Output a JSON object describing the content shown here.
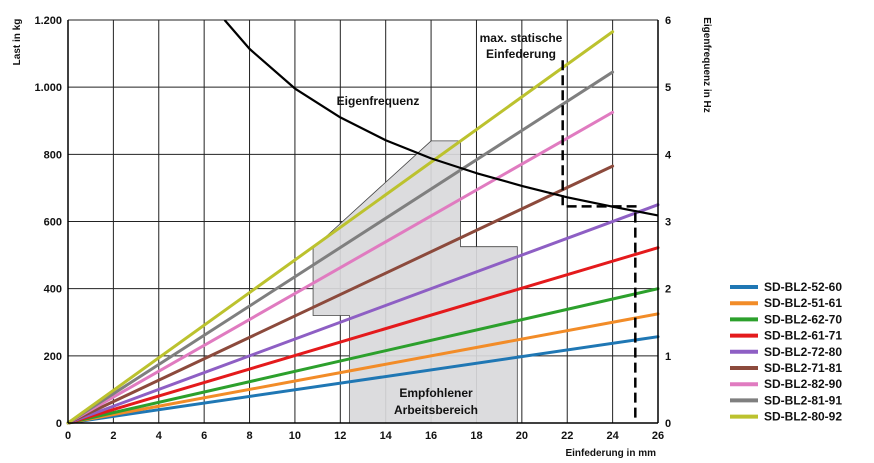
{
  "chart_data": {
    "type": "line",
    "x_axis": {
      "label": "Einfederung in mm",
      "range": [
        0,
        26
      ],
      "ticks": [
        0,
        2,
        4,
        6,
        8,
        10,
        12,
        14,
        16,
        18,
        20,
        22,
        24,
        26
      ],
      "tick_labels": [
        "0",
        "2",
        "4",
        "6",
        "8",
        "10",
        "12",
        "14",
        "16",
        "18",
        "20",
        "22",
        "24",
        "26"
      ]
    },
    "y_axis_left": {
      "label": "Last in kg",
      "range": [
        0,
        1200
      ],
      "ticks": [
        0,
        200,
        400,
        600,
        800,
        1000,
        1200
      ],
      "tick_labels": [
        "0",
        "200",
        "400",
        "600",
        "800",
        "1.000",
        "1.200"
      ]
    },
    "y_axis_right": {
      "label": "Eigenfrequenz in Hz",
      "range": [
        0,
        6
      ],
      "ticks": [
        0,
        1,
        2,
        3,
        4,
        5,
        6
      ],
      "tick_labels": [
        "0",
        "1",
        "2",
        "3",
        "4",
        "5",
        "6"
      ]
    },
    "grid": true,
    "series": [
      {
        "name": "SD-BL2-52-60",
        "color": "#1f77b4",
        "x": [
          0,
          26
        ],
        "y": [
          0,
          257
        ]
      },
      {
        "name": "SD-BL2-51-61",
        "color": "#f28c28",
        "x": [
          0,
          26
        ],
        "y": [
          0,
          325
        ]
      },
      {
        "name": "SD-BL2-62-70",
        "color": "#2ca02c",
        "x": [
          0,
          26
        ],
        "y": [
          0,
          400
        ]
      },
      {
        "name": "SD-BL2-61-71",
        "color": "#e41a1c",
        "x": [
          0,
          26
        ],
        "y": [
          0,
          522
        ]
      },
      {
        "name": "SD-BL2-72-80",
        "color": "#8e5fc4",
        "x": [
          0,
          26
        ],
        "y": [
          0,
          650
        ]
      },
      {
        "name": "SD-BL2-71-81",
        "color": "#8c4a3c",
        "x": [
          0,
          24
        ],
        "y": [
          0,
          765
        ]
      },
      {
        "name": "SD-BL2-82-90",
        "color": "#e07bc0",
        "x": [
          0,
          24
        ],
        "y": [
          0,
          925
        ]
      },
      {
        "name": "SD-BL2-81-91",
        "color": "#7f7f7f",
        "x": [
          0,
          24
        ],
        "y": [
          0,
          1045
        ]
      },
      {
        "name": "SD-BL2-80-92",
        "color": "#bcc22e",
        "x": [
          0,
          24
        ],
        "y": [
          0,
          1165
        ]
      }
    ],
    "eigenfrequenz_curve": {
      "name": "Eigenfrequenz",
      "color": "#000000",
      "axis": "right",
      "x": [
        6.9,
        8,
        10,
        12,
        14,
        16,
        18,
        20,
        22,
        24,
        26
      ],
      "y": [
        6.0,
        5.57,
        4.98,
        4.55,
        4.21,
        3.94,
        3.72,
        3.53,
        3.36,
        3.22,
        3.09
      ]
    },
    "recommended_area": {
      "label_line1": "Empfohlener",
      "label_line2": "Arbeitsbereich",
      "x": [
        10.8,
        10.8,
        12.4,
        12.4,
        19.8,
        19.8,
        17.3,
        17.3,
        16.0,
        10.8
      ],
      "y": [
        520,
        320,
        320,
        0,
        0,
        525,
        525,
        840,
        840,
        520
      ]
    },
    "max_static_deflection": {
      "label_line1": "max. statische",
      "label_line2": "Einfederung",
      "dashed_paths": [
        {
          "x": [
            21.8,
            21.8,
            25.0,
            25.0
          ],
          "y": [
            1080,
            645,
            645,
            0
          ]
        }
      ]
    },
    "legend_position": "right"
  }
}
